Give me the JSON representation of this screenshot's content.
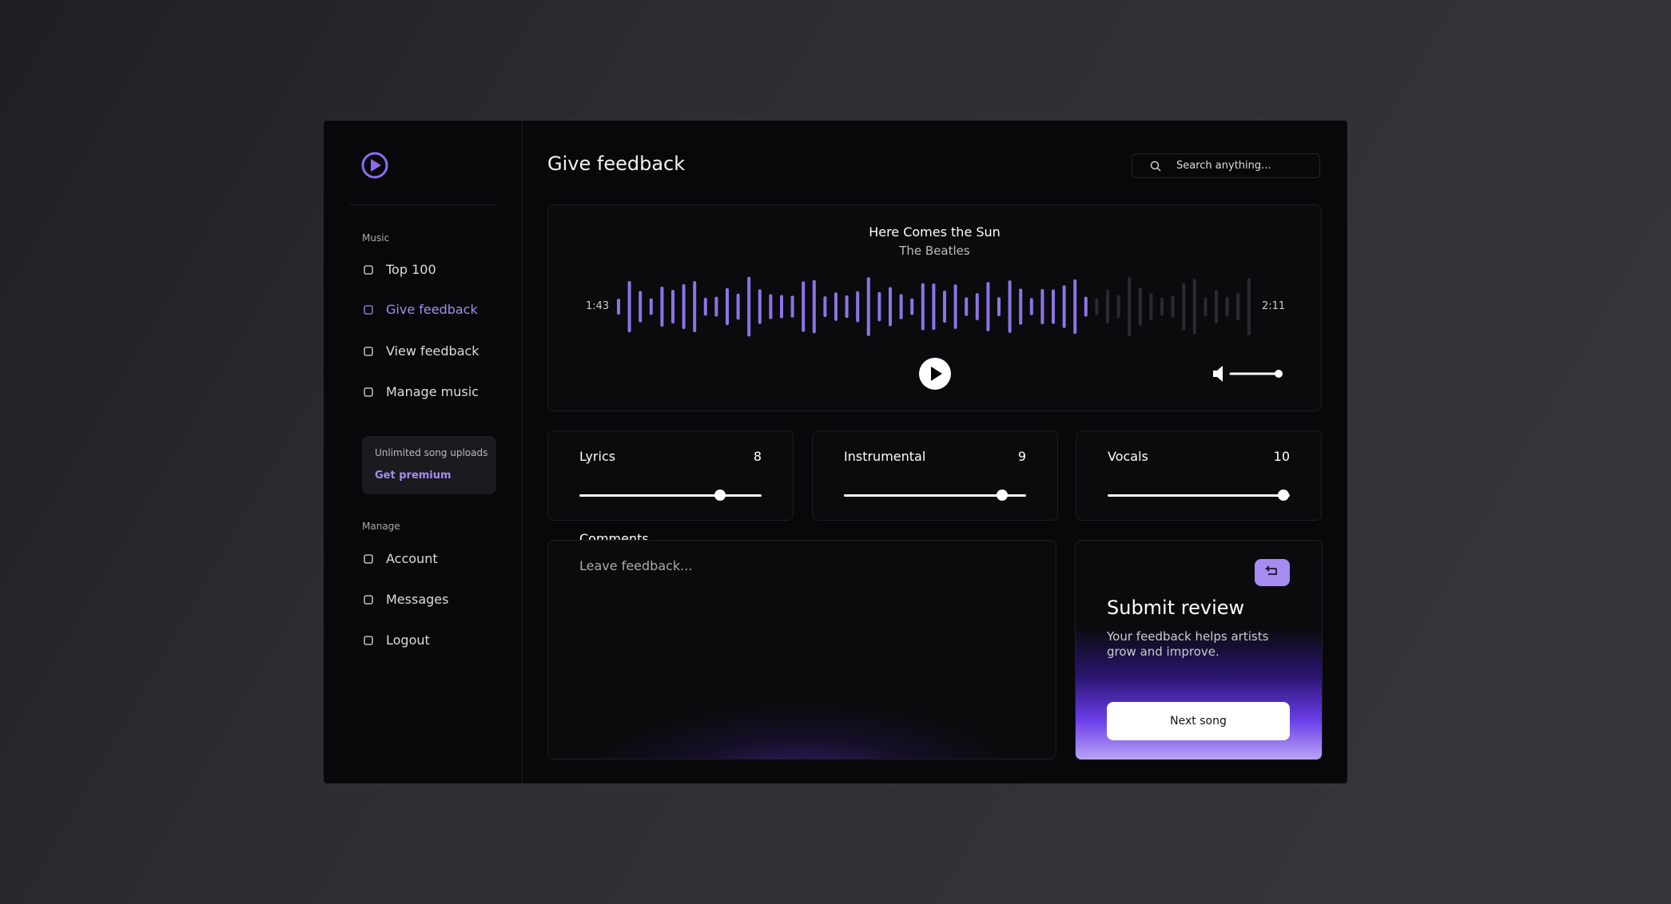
{
  "sidebar": {
    "sections": [
      {
        "title": "Music",
        "items": [
          "Top 100",
          "Give feedback",
          "View feedback",
          "Manage music"
        ]
      },
      {
        "title": "Manage",
        "items": [
          "Account",
          "Messages",
          "Logout"
        ]
      }
    ],
    "promo": {
      "text": "Unlimited song uploads",
      "link": "Get premium"
    }
  },
  "header": {
    "title": "Give feedback",
    "search_placeholder": "Search anything..."
  },
  "player": {
    "song": "Here Comes the Sun",
    "artist": "The Beatles",
    "elapsed": "1:43",
    "duration": "2:11"
  },
  "ratings": [
    {
      "label": "Lyrics",
      "value": 8,
      "range": [
        0,
        10
      ]
    },
    {
      "label": "Instrumental",
      "value": 9,
      "range": [
        0,
        10
      ]
    },
    {
      "label": "Vocals",
      "value": 10,
      "range": [
        0,
        10
      ]
    }
  ],
  "comments": {
    "label": "Comments",
    "placeholder": "Leave feedback..."
  },
  "submit": {
    "title": "Submit review",
    "description": "Your feedback helps artists grow and improve.",
    "button": "Next song"
  }
}
